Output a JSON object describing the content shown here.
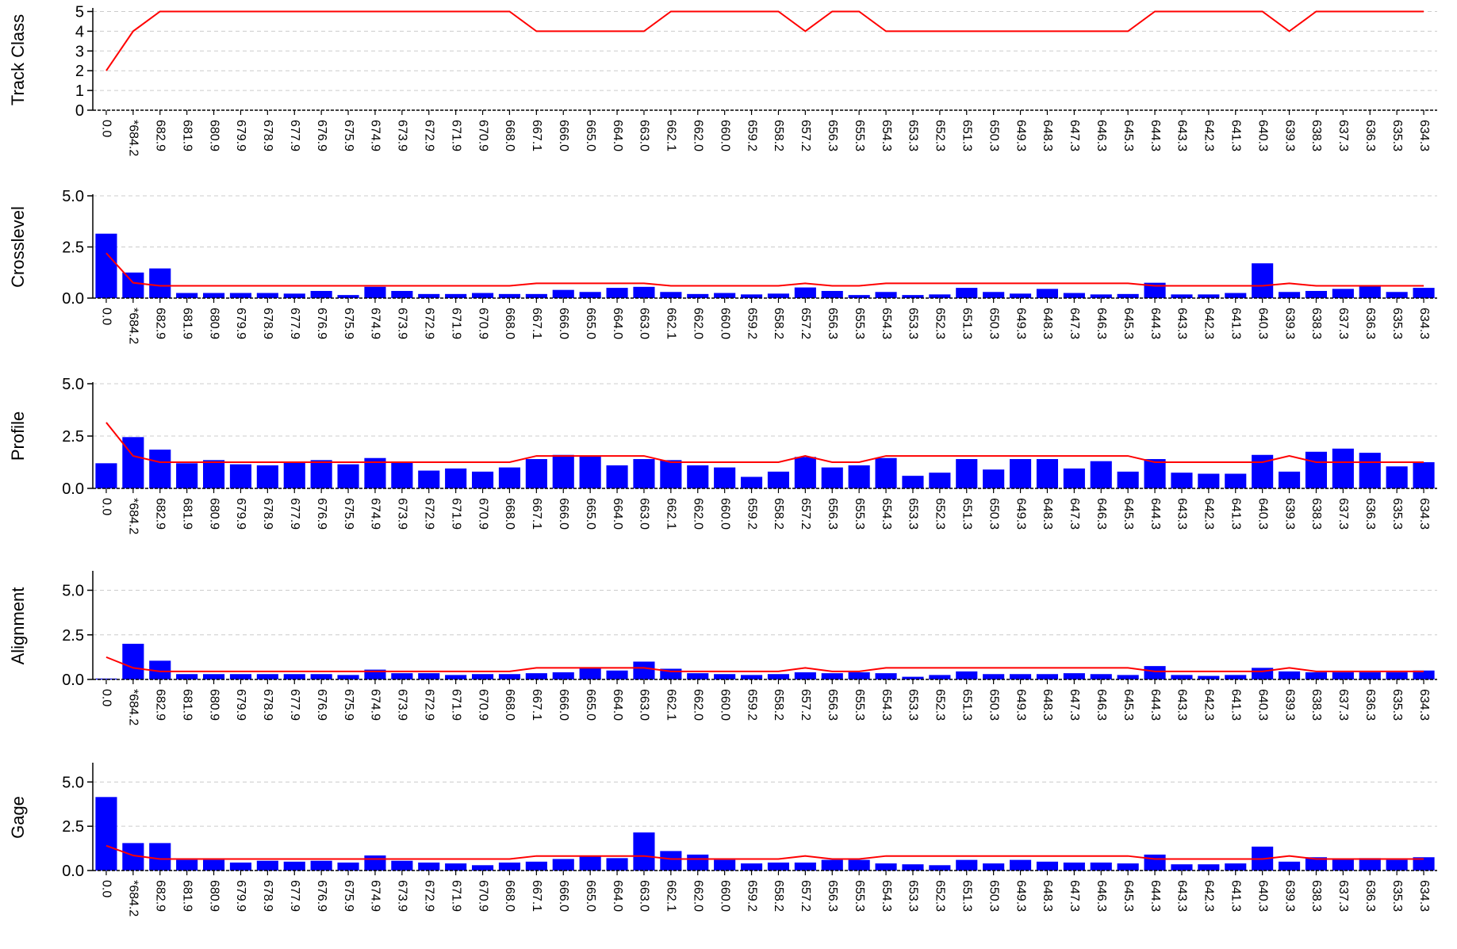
{
  "chart_data": {
    "categories": [
      "0.0",
      "*684.2",
      "682.9",
      "681.9",
      "680.9",
      "679.9",
      "678.9",
      "677.9",
      "676.9",
      "675.9",
      "674.9",
      "673.9",
      "672.9",
      "671.9",
      "670.9",
      "668.0",
      "667.1",
      "666.0",
      "665.0",
      "664.0",
      "663.0",
      "662.1",
      "662.0",
      "660.0",
      "659.2",
      "658.2",
      "657.2",
      "656.3",
      "655.3",
      "654.3",
      "653.3",
      "652.3",
      "651.3",
      "650.3",
      "649.3",
      "648.3",
      "647.3",
      "646.3",
      "645.3",
      "644.3",
      "643.3",
      "642.3",
      "641.3",
      "640.3",
      "639.3",
      "638.3",
      "637.3",
      "636.3",
      "635.3",
      "634.3"
    ],
    "colors": {
      "bars": "#0000ff",
      "line": "#ff0000",
      "grid": "#cccccc"
    },
    "panels": [
      {
        "type": "line",
        "ylabel": "Track Class",
        "ylim": [
          0,
          5.1
        ],
        "yticks": [
          0,
          1,
          2,
          3,
          4,
          5
        ],
        "ytick_labels": [
          "0",
          "1",
          "2",
          "3",
          "4",
          "5"
        ],
        "line": [
          2,
          4,
          5,
          5,
          5,
          5,
          5,
          5,
          5,
          5,
          5,
          5,
          5,
          5,
          5,
          5,
          4,
          4,
          4,
          4,
          4,
          5,
          5,
          5,
          5,
          5,
          4,
          5,
          5,
          4,
          4,
          4,
          4,
          4,
          4,
          4,
          4,
          4,
          4,
          5,
          5,
          5,
          5,
          5,
          4,
          5,
          5,
          5,
          5,
          5
        ]
      },
      {
        "type": "bar",
        "ylabel": "Crosslevel",
        "ylim": [
          0,
          5.0
        ],
        "yticks": [
          0,
          2.5,
          5.0
        ],
        "ytick_labels": [
          "0.0",
          "2.5",
          "5.0"
        ],
        "values": [
          3.15,
          1.25,
          1.45,
          0.25,
          0.25,
          0.25,
          0.25,
          0.22,
          0.35,
          0.15,
          0.55,
          0.35,
          0.2,
          0.2,
          0.25,
          0.2,
          0.2,
          0.4,
          0.3,
          0.5,
          0.55,
          0.3,
          0.2,
          0.25,
          0.18,
          0.22,
          0.52,
          0.35,
          0.15,
          0.3,
          0.15,
          0.18,
          0.5,
          0.3,
          0.22,
          0.45,
          0.25,
          0.18,
          0.2,
          0.75,
          0.18,
          0.18,
          0.25,
          1.7,
          0.3,
          0.35,
          0.45,
          0.6,
          0.3,
          0.5
        ],
        "line": [
          2.2,
          0.75,
          0.6,
          0.6,
          0.6,
          0.6,
          0.6,
          0.6,
          0.6,
          0.6,
          0.6,
          0.6,
          0.6,
          0.6,
          0.6,
          0.6,
          0.72,
          0.72,
          0.72,
          0.72,
          0.72,
          0.6,
          0.6,
          0.6,
          0.6,
          0.6,
          0.72,
          0.6,
          0.6,
          0.72,
          0.72,
          0.72,
          0.72,
          0.72,
          0.72,
          0.72,
          0.72,
          0.72,
          0.72,
          0.6,
          0.6,
          0.6,
          0.6,
          0.6,
          0.72,
          0.6,
          0.6,
          0.6,
          0.6,
          0.6
        ]
      },
      {
        "type": "bar",
        "ylabel": "Profile",
        "ylim": [
          0,
          5.0
        ],
        "yticks": [
          0,
          2.5,
          5.0
        ],
        "ytick_labels": [
          "0.0",
          "2.5",
          "5.0"
        ],
        "values": [
          1.2,
          2.45,
          1.85,
          1.2,
          1.35,
          1.15,
          1.1,
          1.25,
          1.35,
          1.15,
          1.45,
          1.25,
          0.85,
          0.95,
          0.8,
          1.0,
          1.4,
          1.6,
          1.55,
          1.1,
          1.4,
          1.35,
          1.1,
          1.0,
          0.55,
          0.8,
          1.5,
          1.0,
          1.1,
          1.45,
          0.6,
          0.75,
          1.4,
          0.9,
          1.4,
          1.4,
          0.95,
          1.3,
          0.8,
          1.4,
          0.75,
          0.7,
          0.7,
          1.6,
          0.8,
          1.75,
          1.9,
          1.7,
          1.05,
          1.25
        ],
        "line": [
          3.15,
          1.55,
          1.25,
          1.25,
          1.25,
          1.25,
          1.25,
          1.25,
          1.25,
          1.25,
          1.25,
          1.25,
          1.25,
          1.25,
          1.25,
          1.25,
          1.55,
          1.55,
          1.55,
          1.55,
          1.55,
          1.25,
          1.25,
          1.25,
          1.25,
          1.25,
          1.55,
          1.25,
          1.25,
          1.55,
          1.55,
          1.55,
          1.55,
          1.55,
          1.55,
          1.55,
          1.55,
          1.55,
          1.55,
          1.25,
          1.25,
          1.25,
          1.25,
          1.25,
          1.55,
          1.25,
          1.25,
          1.25,
          1.25,
          1.25
        ]
      },
      {
        "type": "bar",
        "ylabel": "Alignment",
        "ylim": [
          0,
          6.0
        ],
        "yticks": [
          0,
          2.5,
          5.0
        ],
        "ytick_labels": [
          "0.0",
          "2.5",
          "5.0"
        ],
        "values": [
          0.05,
          2.0,
          1.05,
          0.3,
          0.3,
          0.3,
          0.3,
          0.3,
          0.3,
          0.25,
          0.55,
          0.35,
          0.35,
          0.25,
          0.3,
          0.3,
          0.35,
          0.4,
          0.65,
          0.5,
          1.0,
          0.6,
          0.35,
          0.3,
          0.25,
          0.3,
          0.4,
          0.35,
          0.4,
          0.35,
          0.15,
          0.25,
          0.45,
          0.3,
          0.3,
          0.3,
          0.35,
          0.3,
          0.25,
          0.75,
          0.25,
          0.2,
          0.25,
          0.65,
          0.45,
          0.4,
          0.4,
          0.4,
          0.4,
          0.5
        ],
        "line": [
          1.25,
          0.65,
          0.45,
          0.45,
          0.45,
          0.45,
          0.45,
          0.45,
          0.45,
          0.45,
          0.45,
          0.45,
          0.45,
          0.45,
          0.45,
          0.45,
          0.65,
          0.65,
          0.65,
          0.65,
          0.65,
          0.45,
          0.45,
          0.45,
          0.45,
          0.45,
          0.65,
          0.45,
          0.45,
          0.65,
          0.65,
          0.65,
          0.65,
          0.65,
          0.65,
          0.65,
          0.65,
          0.65,
          0.65,
          0.45,
          0.45,
          0.45,
          0.45,
          0.45,
          0.65,
          0.45,
          0.45,
          0.45,
          0.45,
          0.45
        ]
      },
      {
        "type": "bar",
        "ylabel": "Gage",
        "ylim": [
          0,
          6.0
        ],
        "yticks": [
          0,
          2.5,
          5.0
        ],
        "ytick_labels": [
          "0.0",
          "2.5",
          "5.0"
        ],
        "values": [
          4.15,
          1.55,
          1.55,
          0.6,
          0.6,
          0.45,
          0.55,
          0.5,
          0.55,
          0.45,
          0.85,
          0.55,
          0.45,
          0.4,
          0.3,
          0.45,
          0.5,
          0.65,
          0.8,
          0.7,
          2.15,
          1.1,
          0.9,
          0.6,
          0.4,
          0.45,
          0.45,
          0.6,
          0.6,
          0.4,
          0.35,
          0.3,
          0.6,
          0.4,
          0.6,
          0.5,
          0.45,
          0.45,
          0.4,
          0.9,
          0.35,
          0.35,
          0.4,
          1.35,
          0.5,
          0.75,
          0.65,
          0.7,
          0.6,
          0.75
        ],
        "line": [
          1.4,
          0.85,
          0.65,
          0.65,
          0.65,
          0.65,
          0.65,
          0.65,
          0.65,
          0.65,
          0.65,
          0.65,
          0.65,
          0.65,
          0.65,
          0.65,
          0.82,
          0.82,
          0.82,
          0.82,
          0.82,
          0.65,
          0.65,
          0.65,
          0.65,
          0.65,
          0.82,
          0.65,
          0.65,
          0.82,
          0.82,
          0.82,
          0.82,
          0.82,
          0.82,
          0.82,
          0.82,
          0.82,
          0.82,
          0.65,
          0.65,
          0.65,
          0.65,
          0.65,
          0.82,
          0.65,
          0.65,
          0.65,
          0.65,
          0.65
        ]
      }
    ]
  }
}
